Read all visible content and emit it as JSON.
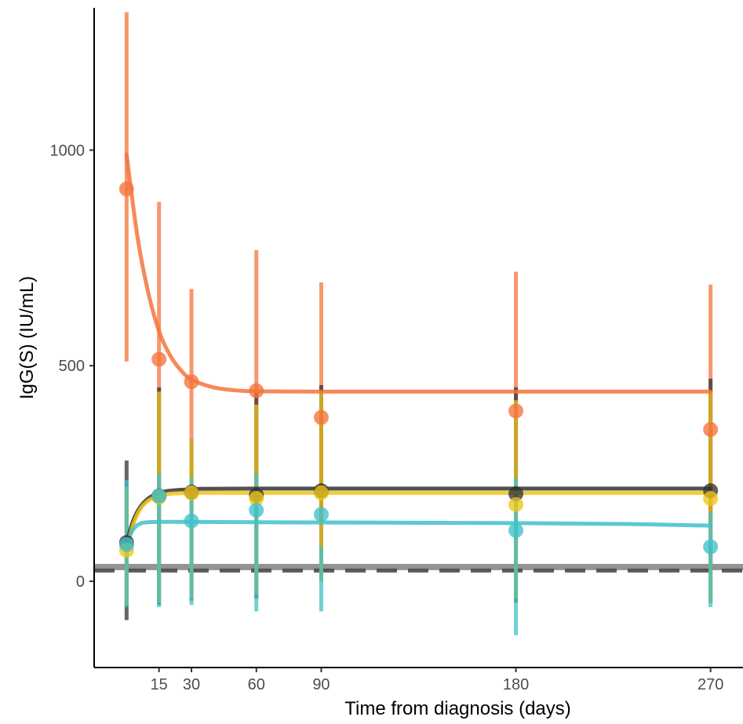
{
  "chart_data": {
    "type": "line",
    "title": "",
    "xlabel": "Time from diagnosis (days)",
    "ylabel": "IgG(S) (IU/mL)",
    "xlim": [
      -15,
      285
    ],
    "ylim": [
      -200,
      1330
    ],
    "xticks": [
      15,
      30,
      60,
      90,
      180,
      270
    ],
    "yticks": [
      0,
      500,
      1000
    ],
    "grid": false,
    "legend": "none",
    "reference_lines": [
      {
        "y": 33,
        "style": "solid",
        "color": "#808080"
      },
      {
        "y": 25,
        "style": "dashed",
        "color": "#4a4a4a"
      }
    ],
    "series": [
      {
        "color": "#f4743b",
        "points": [
          {
            "x": 0,
            "y": 910,
            "lo": 510,
            "hi": 1320
          },
          {
            "x": 15,
            "y": 515,
            "lo": 200,
            "hi": 880
          },
          {
            "x": 30,
            "y": 463,
            "lo": 200,
            "hi": 678
          },
          {
            "x": 60,
            "y": 442,
            "lo": 150,
            "hi": 768
          },
          {
            "x": 90,
            "y": 380,
            "lo": 130,
            "hi": 693
          },
          {
            "x": 180,
            "y": 395,
            "lo": 200,
            "hi": 718
          },
          {
            "x": 270,
            "y": 352,
            "lo": 130,
            "hi": 688
          }
        ],
        "fit": [
          {
            "x": 0,
            "y": 990
          },
          {
            "x": 5,
            "y": 800
          },
          {
            "x": 10,
            "y": 670
          },
          {
            "x": 15,
            "y": 580
          },
          {
            "x": 20,
            "y": 525
          },
          {
            "x": 25,
            "y": 490
          },
          {
            "x": 30,
            "y": 468
          },
          {
            "x": 40,
            "y": 450
          },
          {
            "x": 50,
            "y": 443
          },
          {
            "x": 60,
            "y": 441
          },
          {
            "x": 90,
            "y": 440
          },
          {
            "x": 180,
            "y": 440
          },
          {
            "x": 270,
            "y": 440
          }
        ]
      },
      {
        "color": "#333333",
        "points": [
          {
            "x": 0,
            "y": 90,
            "lo": -90,
            "hi": 280
          },
          {
            "x": 15,
            "y": 198,
            "lo": -55,
            "hi": 450
          },
          {
            "x": 30,
            "y": 207,
            "lo": -45,
            "hi": 330
          },
          {
            "x": 60,
            "y": 200,
            "lo": -40,
            "hi": 440
          },
          {
            "x": 90,
            "y": 210,
            "lo": 0,
            "hi": 455
          },
          {
            "x": 180,
            "y": 203,
            "lo": -50,
            "hi": 450
          },
          {
            "x": 270,
            "y": 210,
            "lo": -50,
            "hi": 470
          }
        ],
        "fit": [
          {
            "x": 0,
            "y": 90
          },
          {
            "x": 3,
            "y": 140
          },
          {
            "x": 6,
            "y": 170
          },
          {
            "x": 10,
            "y": 192
          },
          {
            "x": 15,
            "y": 205
          },
          {
            "x": 20,
            "y": 210
          },
          {
            "x": 30,
            "y": 213
          },
          {
            "x": 60,
            "y": 215
          },
          {
            "x": 270,
            "y": 215
          }
        ]
      },
      {
        "color": "#f0c419",
        "points": [
          {
            "x": 0,
            "y": 72,
            "lo": -55,
            "hi": 220
          },
          {
            "x": 15,
            "y": 195,
            "lo": -50,
            "hi": 440
          },
          {
            "x": 30,
            "y": 205,
            "lo": -40,
            "hi": 330
          },
          {
            "x": 60,
            "y": 192,
            "lo": -30,
            "hi": 410
          },
          {
            "x": 90,
            "y": 205,
            "lo": 0,
            "hi": 440
          },
          {
            "x": 180,
            "y": 178,
            "lo": -40,
            "hi": 420
          },
          {
            "x": 270,
            "y": 192,
            "lo": -50,
            "hi": 440
          }
        ],
        "fit": [
          {
            "x": 0,
            "y": 75
          },
          {
            "x": 3,
            "y": 130
          },
          {
            "x": 6,
            "y": 165
          },
          {
            "x": 10,
            "y": 187
          },
          {
            "x": 15,
            "y": 198
          },
          {
            "x": 20,
            "y": 203
          },
          {
            "x": 30,
            "y": 205
          },
          {
            "x": 60,
            "y": 205
          },
          {
            "x": 270,
            "y": 205
          }
        ]
      },
      {
        "color": "#3fc1c9",
        "points": [
          {
            "x": 0,
            "y": 85,
            "lo": -60,
            "hi": 235
          },
          {
            "x": 15,
            "y": 198,
            "lo": -60,
            "hi": 250
          },
          {
            "x": 30,
            "y": 140,
            "lo": -55,
            "hi": 240
          },
          {
            "x": 60,
            "y": 165,
            "lo": -70,
            "hi": 250
          },
          {
            "x": 90,
            "y": 155,
            "lo": -70,
            "hi": 80
          },
          {
            "x": 180,
            "y": 118,
            "lo": -125,
            "hi": 240
          },
          {
            "x": 270,
            "y": 80,
            "lo": -60,
            "hi": 160
          }
        ],
        "fit": [
          {
            "x": 0,
            "y": 90
          },
          {
            "x": 3,
            "y": 120
          },
          {
            "x": 6,
            "y": 133
          },
          {
            "x": 10,
            "y": 137
          },
          {
            "x": 20,
            "y": 138
          },
          {
            "x": 60,
            "y": 137
          },
          {
            "x": 120,
            "y": 136
          },
          {
            "x": 180,
            "y": 135
          },
          {
            "x": 230,
            "y": 133
          },
          {
            "x": 270,
            "y": 129
          }
        ]
      }
    ]
  }
}
